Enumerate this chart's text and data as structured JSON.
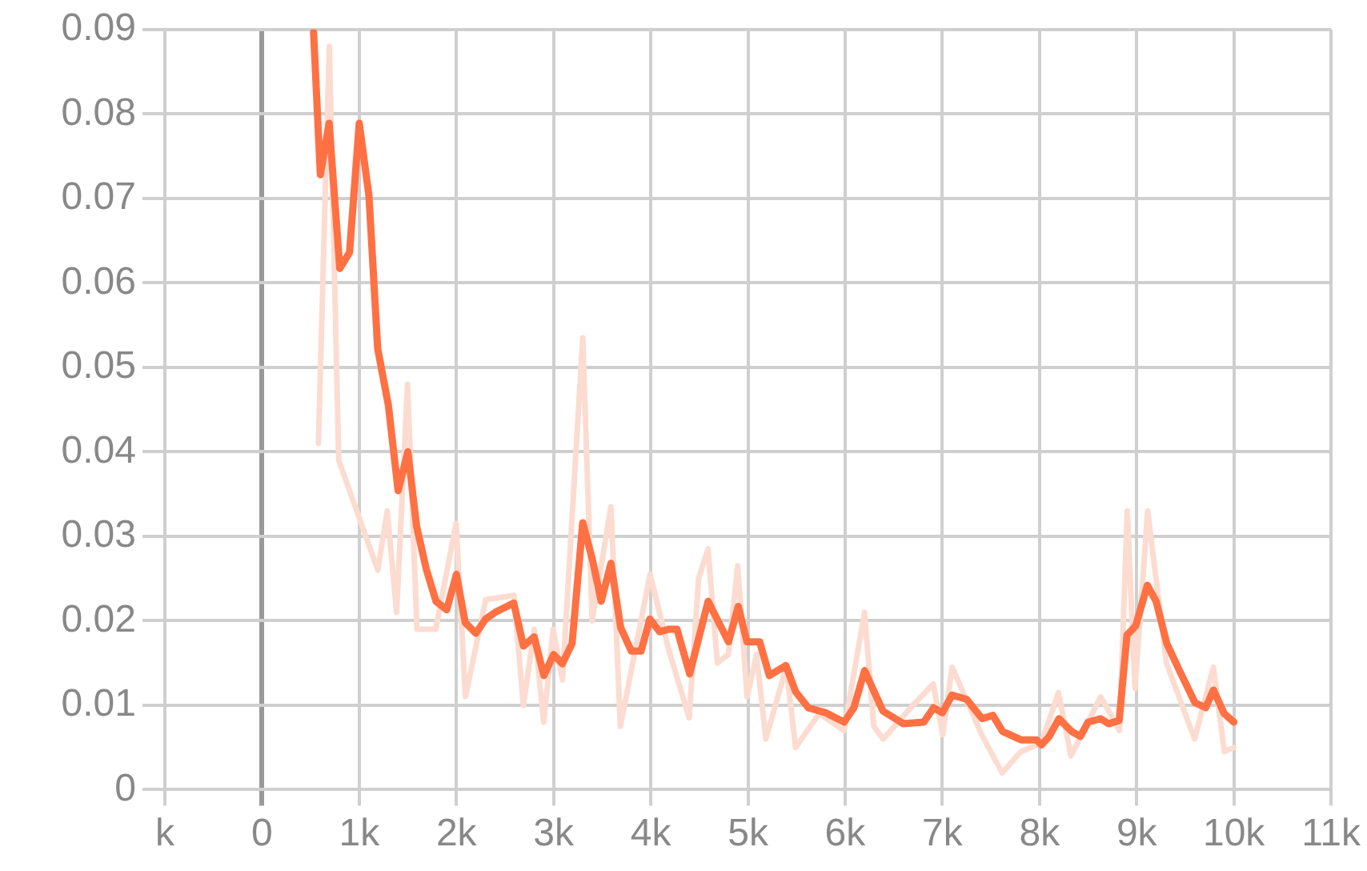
{
  "chart_data": {
    "type": "line",
    "grid": true,
    "legend": false,
    "marker": "none",
    "line_style": "solid",
    "xlim": [
      -1000,
      11000
    ],
    "xticks": [
      {
        "value": -1000,
        "label": "k"
      },
      0,
      {
        "value": 1000,
        "label": "1k"
      },
      {
        "value": 2000,
        "label": "2k"
      },
      {
        "value": 3000,
        "label": "3k"
      },
      {
        "value": 4000,
        "label": "4k"
      },
      {
        "value": 5000,
        "label": "5k"
      },
      {
        "value": 6000,
        "label": "6k"
      },
      {
        "value": 7000,
        "label": "7k"
      },
      {
        "value": 8000,
        "label": "8k"
      },
      {
        "value": 9000,
        "label": "9k"
      },
      {
        "value": 10000,
        "label": "10k"
      },
      {
        "value": 11000,
        "label": "11k"
      }
    ],
    "ylim": [
      0,
      0.09
    ],
    "yticks": [
      0,
      0.01,
      0.02,
      0.03,
      0.04,
      0.05,
      0.06,
      0.07,
      0.08,
      0.09
    ],
    "series": [
      {
        "color": "#fcdcd0",
        "x": [
          580,
          692,
          789,
          1191,
          1288,
          1385,
          1497,
          1594,
          1787,
          1996,
          2093,
          2302,
          2592,
          2689,
          2801,
          2898,
          2995,
          3091,
          3300,
          3397,
          3590,
          3687,
          3993,
          4186,
          4395,
          4492,
          4589,
          4685,
          4798,
          4894,
          4991,
          5088,
          5184,
          5394,
          5490,
          5732,
          5989,
          6199,
          6295,
          6392,
          6698,
          6907,
          7004,
          7100,
          7406,
          7615,
          7809,
          8018,
          8195,
          8324,
          8630,
          8823,
          8903,
          8983,
          9113,
          9306,
          9596,
          9789,
          9902,
          10000
        ],
        "values": [
          0.041,
          0.088,
          0.039,
          0.026,
          0.033,
          0.021,
          0.048,
          0.019,
          0.019,
          0.0315,
          0.011,
          0.0225,
          0.023,
          0.01,
          0.019,
          0.008,
          0.019,
          0.013,
          0.0535,
          0.02,
          0.0335,
          0.0075,
          0.0255,
          0.0165,
          0.0085,
          0.025,
          0.0285,
          0.015,
          0.016,
          0.0265,
          0.011,
          0.016,
          0.006,
          0.0145,
          0.005,
          0.009,
          0.007,
          0.021,
          0.0075,
          0.006,
          0.01,
          0.0125,
          0.0065,
          0.0145,
          0.0065,
          0.002,
          0.0045,
          0.0055,
          0.0115,
          0.004,
          0.011,
          0.007,
          0.033,
          0.012,
          0.033,
          0.015,
          0.006,
          0.0145,
          0.0045,
          0.005
        ]
      },
      {
        "color": "#ff7043",
        "x": [
          530,
          600,
          690,
          800,
          900,
          1000,
          1100,
          1190,
          1300,
          1400,
          1500,
          1590,
          1690,
          1790,
          1900,
          2000,
          2090,
          2200,
          2300,
          2400,
          2590,
          2690,
          2800,
          2900,
          3000,
          3090,
          3190,
          3300,
          3400,
          3490,
          3590,
          3690,
          3800,
          3900,
          3990,
          4090,
          4190,
          4270,
          4400,
          4590,
          4800,
          4900,
          4990,
          5120,
          5220,
          5390,
          5490,
          5620,
          5800,
          5990,
          6090,
          6200,
          6390,
          6600,
          6810,
          6910,
          7000,
          7100,
          7250,
          7410,
          7520,
          7620,
          7810,
          7970,
          8020,
          8100,
          8200,
          8330,
          8420,
          8500,
          8630,
          8710,
          8820,
          8900,
          8990,
          9110,
          9200,
          9310,
          9440,
          9600,
          9710,
          9790,
          9900,
          10000
        ],
        "values": [
          0.0897,
          0.0728,
          0.0789,
          0.0617,
          0.0636,
          0.0789,
          0.0703,
          0.0522,
          0.0455,
          0.0354,
          0.04,
          0.0312,
          0.0261,
          0.0223,
          0.0213,
          0.0255,
          0.0198,
          0.0185,
          0.0202,
          0.021,
          0.0221,
          0.017,
          0.0181,
          0.0135,
          0.016,
          0.0149,
          0.0173,
          0.0316,
          0.0272,
          0.0223,
          0.0268,
          0.0192,
          0.0164,
          0.0164,
          0.0202,
          0.0187,
          0.019,
          0.019,
          0.0137,
          0.0223,
          0.0175,
          0.0217,
          0.0175,
          0.0175,
          0.0135,
          0.0147,
          0.0116,
          0.0097,
          0.0091,
          0.008,
          0.0097,
          0.0141,
          0.0093,
          0.0078,
          0.008,
          0.0097,
          0.0091,
          0.0112,
          0.0107,
          0.0084,
          0.0088,
          0.0069,
          0.0059,
          0.0059,
          0.0053,
          0.0063,
          0.0084,
          0.0069,
          0.0063,
          0.008,
          0.0084,
          0.0078,
          0.0082,
          0.0183,
          0.0194,
          0.0242,
          0.0223,
          0.0173,
          0.0141,
          0.0103,
          0.0097,
          0.0118,
          0.009,
          0.008
        ]
      }
    ]
  }
}
